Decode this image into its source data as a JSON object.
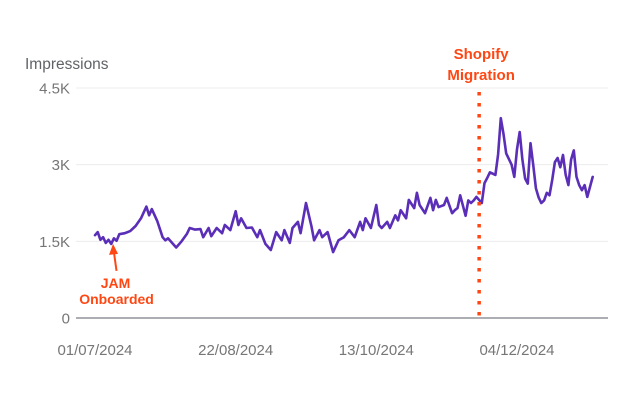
{
  "colors": {
    "series": "#5B2EB8",
    "annotation": "#FF4713",
    "grid": "#ECECEC",
    "axis": "#90949A",
    "tick_text": "#767676",
    "title_text": "#5F6368",
    "background": "#FFFFFF"
  },
  "chart_data": {
    "type": "line",
    "title": "Impressions",
    "x_axis": {
      "unit": "date",
      "tick_labels": [
        "01/07/2024",
        "22/08/2024",
        "13/10/2024",
        "04/12/2024"
      ],
      "tick_days": [
        0,
        52,
        104,
        156
      ],
      "day_range": [
        0,
        190
      ],
      "start_date": "01/07/2024"
    },
    "y_axis": {
      "ticks": [
        0,
        1500,
        3000,
        4500
      ],
      "tick_labels": [
        "0",
        "1.5K",
        "3K",
        "4.5K"
      ],
      "range": [
        0,
        4500
      ]
    },
    "grid": true,
    "legend": "none",
    "series": [
      {
        "name": "Impressions",
        "points": [
          [
            0,
            1620
          ],
          [
            1,
            1680
          ],
          [
            2,
            1530
          ],
          [
            3,
            1580
          ],
          [
            4,
            1470
          ],
          [
            5,
            1530
          ],
          [
            6,
            1450
          ],
          [
            7,
            1560
          ],
          [
            8,
            1510
          ],
          [
            9,
            1640
          ],
          [
            11,
            1660
          ],
          [
            13,
            1700
          ],
          [
            15,
            1800
          ],
          [
            17,
            1950
          ],
          [
            19,
            2180
          ],
          [
            20,
            2010
          ],
          [
            21,
            2130
          ],
          [
            23,
            1900
          ],
          [
            25,
            1580
          ],
          [
            26,
            1520
          ],
          [
            27,
            1560
          ],
          [
            30,
            1380
          ],
          [
            32,
            1500
          ],
          [
            34,
            1650
          ],
          [
            35,
            1760
          ],
          [
            37,
            1730
          ],
          [
            39,
            1740
          ],
          [
            40,
            1580
          ],
          [
            42,
            1760
          ],
          [
            43,
            1600
          ],
          [
            45,
            1760
          ],
          [
            47,
            1660
          ],
          [
            48,
            1820
          ],
          [
            50,
            1720
          ],
          [
            52,
            2090
          ],
          [
            53,
            1820
          ],
          [
            54,
            1950
          ],
          [
            56,
            1760
          ],
          [
            58,
            1770
          ],
          [
            60,
            1580
          ],
          [
            61,
            1720
          ],
          [
            63,
            1450
          ],
          [
            65,
            1330
          ],
          [
            67,
            1680
          ],
          [
            69,
            1520
          ],
          [
            70,
            1720
          ],
          [
            72,
            1470
          ],
          [
            73,
            1760
          ],
          [
            75,
            1880
          ],
          [
            76,
            1660
          ],
          [
            78,
            2250
          ],
          [
            80,
            1800
          ],
          [
            81,
            1520
          ],
          [
            83,
            1720
          ],
          [
            84,
            1580
          ],
          [
            86,
            1680
          ],
          [
            88,
            1290
          ],
          [
            90,
            1520
          ],
          [
            92,
            1580
          ],
          [
            94,
            1720
          ],
          [
            96,
            1580
          ],
          [
            98,
            1880
          ],
          [
            99,
            1720
          ],
          [
            100,
            1950
          ],
          [
            102,
            1760
          ],
          [
            104,
            2210
          ],
          [
            105,
            1820
          ],
          [
            106,
            1760
          ],
          [
            108,
            1880
          ],
          [
            109,
            1760
          ],
          [
            111,
            2010
          ],
          [
            112,
            1910
          ],
          [
            113,
            2110
          ],
          [
            115,
            1950
          ],
          [
            116,
            2310
          ],
          [
            118,
            2150
          ],
          [
            119,
            2450
          ],
          [
            120,
            2210
          ],
          [
            122,
            2050
          ],
          [
            124,
            2350
          ],
          [
            125,
            2110
          ],
          [
            126,
            2310
          ],
          [
            127,
            2170
          ],
          [
            129,
            2210
          ],
          [
            130,
            2350
          ],
          [
            132,
            2050
          ],
          [
            133,
            2110
          ],
          [
            134,
            2150
          ],
          [
            135,
            2400
          ],
          [
            137,
            2000
          ],
          [
            138,
            2300
          ],
          [
            139,
            2250
          ],
          [
            140,
            2300
          ],
          [
            141,
            2370
          ],
          [
            143,
            2250
          ],
          [
            144,
            2640
          ],
          [
            145,
            2740
          ],
          [
            146,
            2850
          ],
          [
            148,
            2800
          ],
          [
            149,
            3200
          ],
          [
            150,
            3910
          ],
          [
            151,
            3600
          ],
          [
            152,
            3220
          ],
          [
            154,
            3000
          ],
          [
            155,
            2760
          ],
          [
            156,
            3300
          ],
          [
            157,
            3640
          ],
          [
            158,
            3100
          ],
          [
            159,
            2730
          ],
          [
            160,
            2630
          ],
          [
            161,
            3420
          ],
          [
            162,
            3000
          ],
          [
            163,
            2540
          ],
          [
            164,
            2360
          ],
          [
            165,
            2250
          ],
          [
            166,
            2300
          ],
          [
            167,
            2450
          ],
          [
            168,
            2400
          ],
          [
            169,
            2700
          ],
          [
            170,
            3050
          ],
          [
            171,
            3130
          ],
          [
            172,
            2950
          ],
          [
            173,
            3190
          ],
          [
            174,
            2800
          ],
          [
            175,
            2600
          ],
          [
            176,
            3100
          ],
          [
            177,
            3280
          ],
          [
            178,
            2760
          ],
          [
            179,
            2600
          ],
          [
            180,
            2500
          ],
          [
            181,
            2600
          ],
          [
            182,
            2370
          ],
          [
            184,
            2760
          ]
        ]
      }
    ],
    "annotations": {
      "shopify_migration": {
        "lines": [
          "Shopify",
          "Migration"
        ],
        "style": "vertical-dotted-line",
        "day": 142
      },
      "jam_onboarded": {
        "lines": [
          "JAM",
          "Onboarded"
        ],
        "style": "arrow-to-point",
        "day": 6,
        "points_to_value": 1450
      }
    }
  }
}
